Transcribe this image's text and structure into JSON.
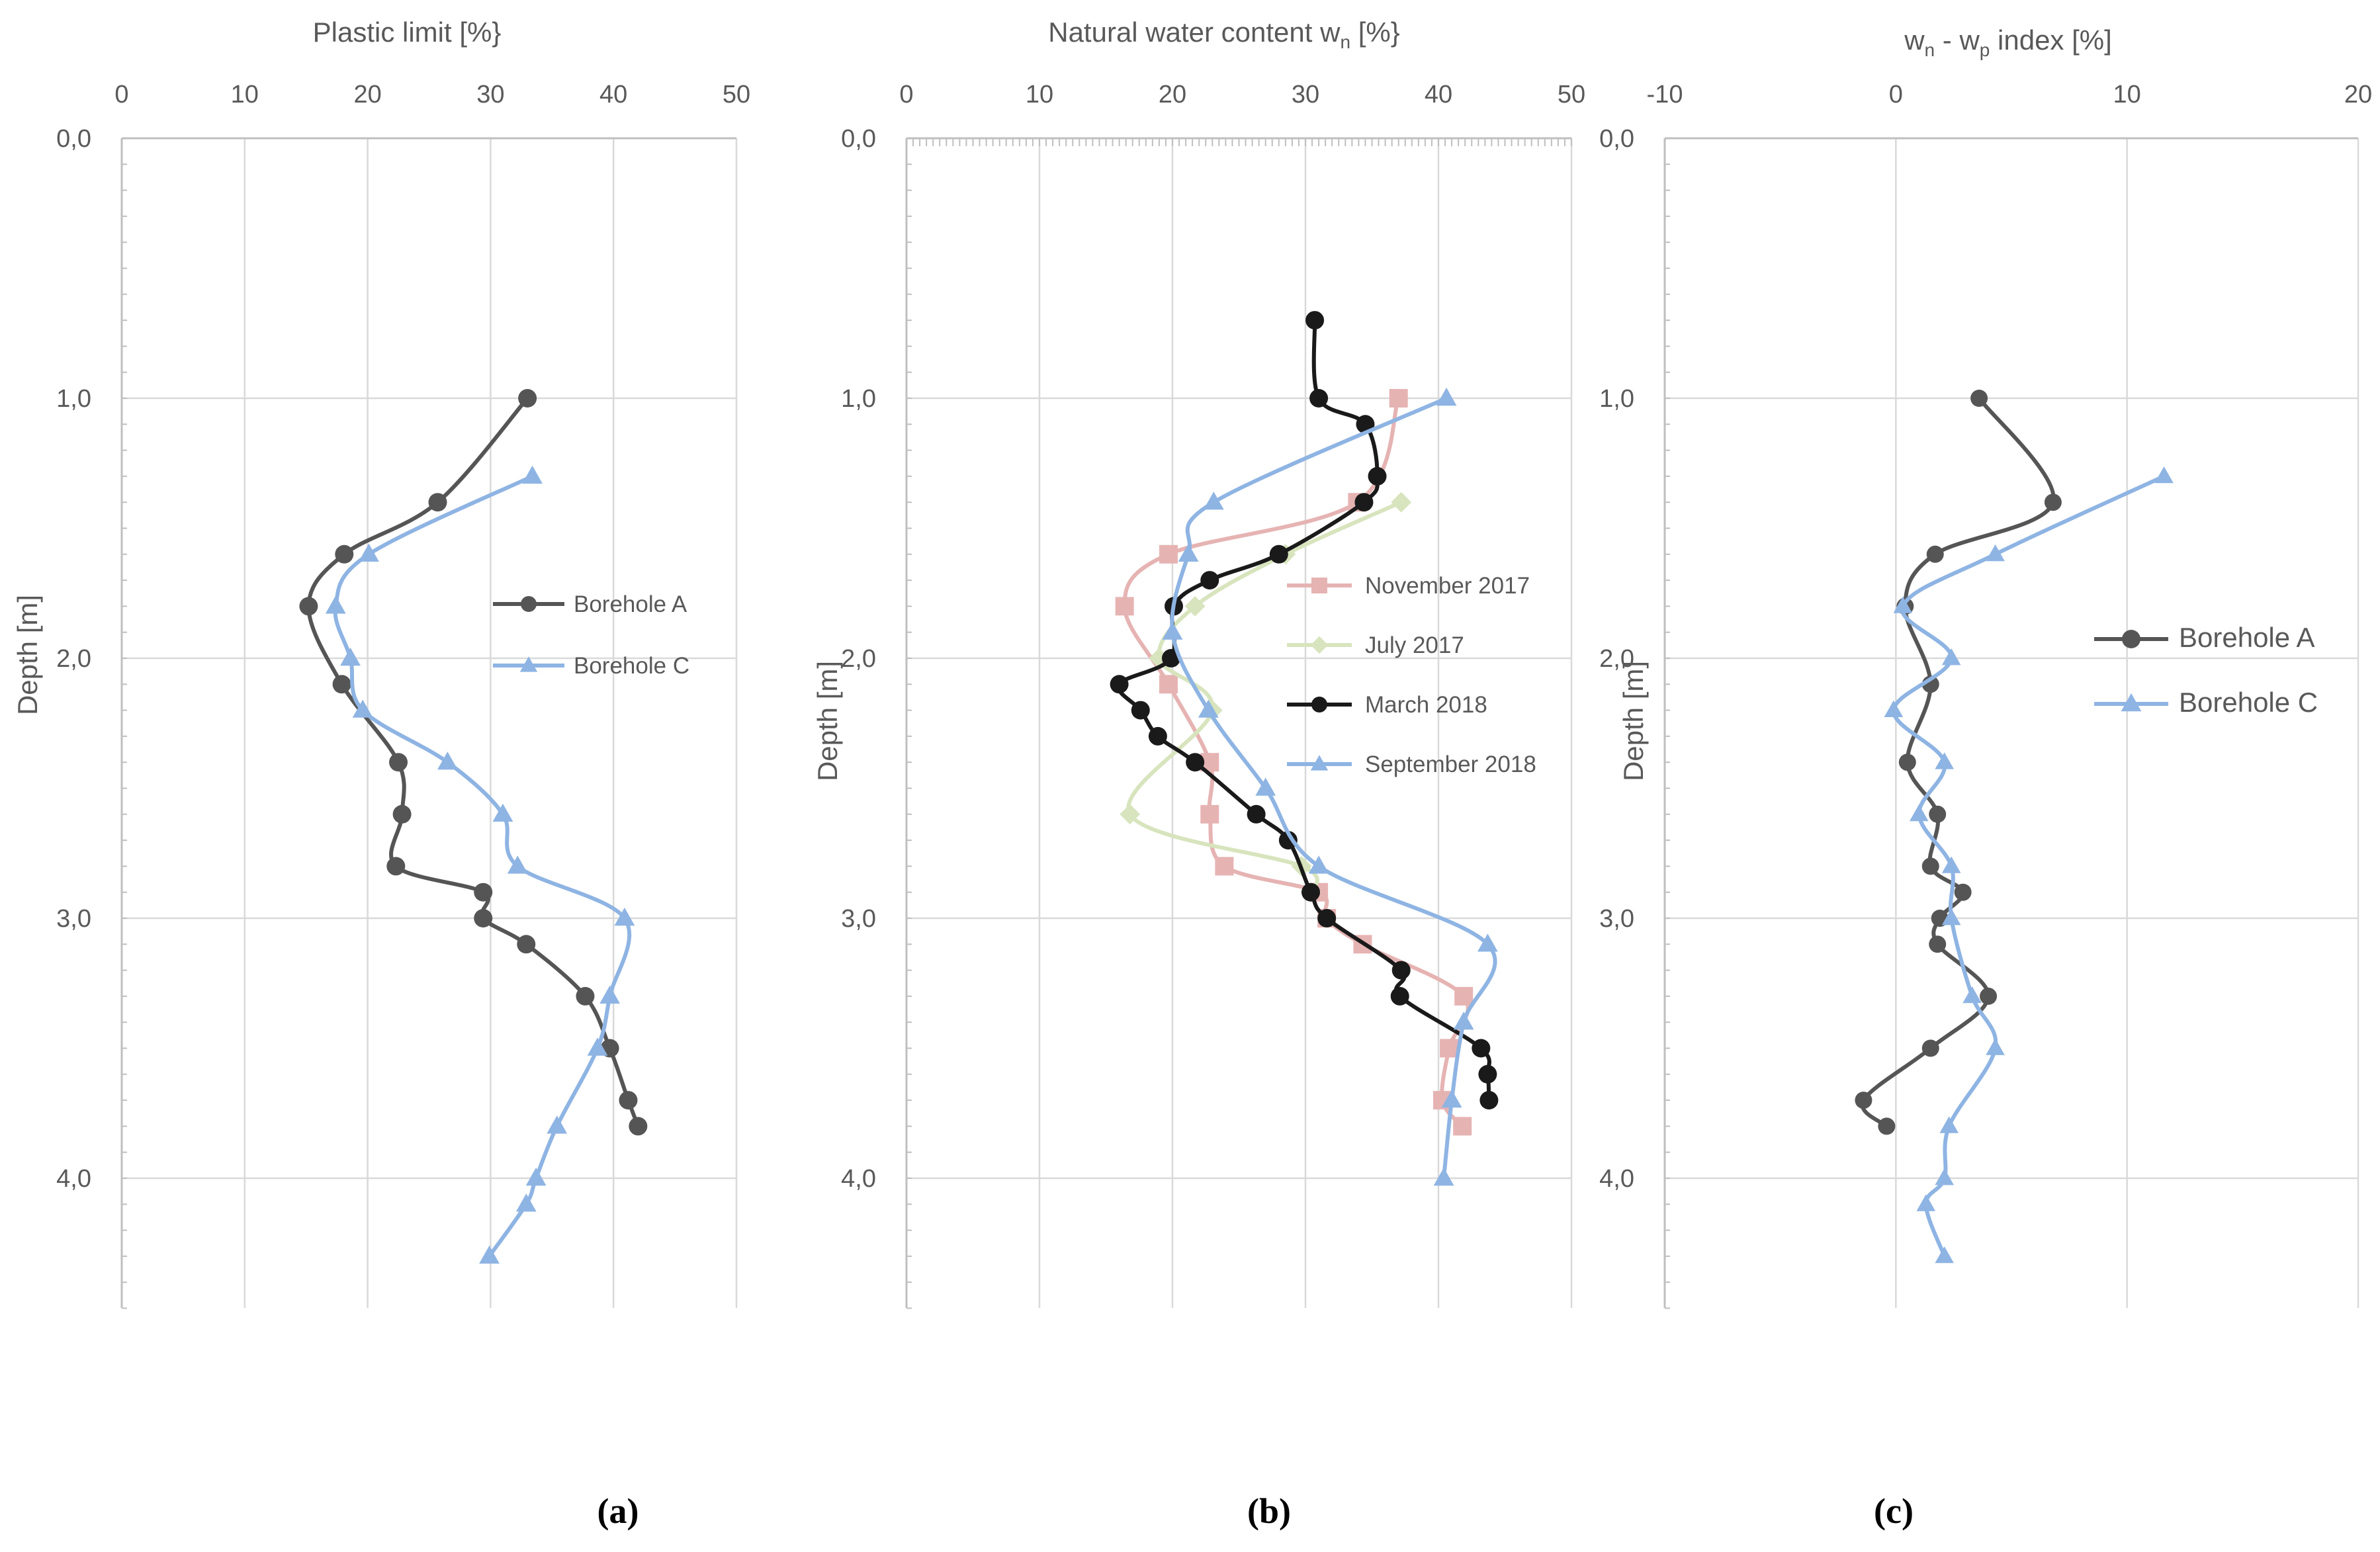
{
  "colors": {
    "borehole_a": "#555555",
    "borehole_c": "#8eb4e3",
    "nov_2017": "#e6b3b3",
    "jul_2017": "#d7e4bd",
    "mar_2018": "#1a1a1a",
    "sep_2018": "#8eb4e3",
    "grid": "#d9d9d9",
    "text": "#595959"
  },
  "chart_data": [
    {
      "id": "a",
      "type": "line",
      "caption": "(a)",
      "title": "Plastic limit [%}",
      "xlabel": "Plastic limit [%}",
      "ylabel": "Depth [m]",
      "xlim": [
        0,
        50
      ],
      "ylim": [
        0,
        4.5
      ],
      "x_ticks": [
        "0",
        "10",
        "20",
        "30",
        "40",
        "50"
      ],
      "x_tick_values": [
        0,
        10,
        20,
        30,
        40,
        50
      ],
      "y_ticks": [
        "0,0",
        "1,0",
        "2,0",
        "3,0",
        "4,0"
      ],
      "y_tick_values": [
        0,
        1,
        2,
        3,
        4
      ],
      "legend_position": "right-middle",
      "series": [
        {
          "name": "Borehole A",
          "color_key": "borehole_a",
          "marker": "circle",
          "points": [
            [
              33.0,
              1.0
            ],
            [
              25.7,
              1.4
            ],
            [
              18.1,
              1.6
            ],
            [
              15.2,
              1.8
            ],
            [
              17.9,
              2.1
            ],
            [
              22.5,
              2.4
            ],
            [
              22.8,
              2.6
            ],
            [
              22.3,
              2.8
            ],
            [
              29.4,
              2.9
            ],
            [
              29.4,
              3.0
            ],
            [
              32.9,
              3.1
            ],
            [
              37.7,
              3.3
            ],
            [
              39.7,
              3.5
            ],
            [
              41.2,
              3.7
            ],
            [
              42.0,
              3.8
            ]
          ]
        },
        {
          "name": "Borehole C",
          "color_key": "borehole_c",
          "marker": "triangle",
          "points": [
            [
              33.4,
              1.3
            ],
            [
              20.1,
              1.6
            ],
            [
              17.4,
              1.8
            ],
            [
              18.6,
              2.0
            ],
            [
              19.6,
              2.2
            ],
            [
              26.5,
              2.4
            ],
            [
              31.0,
              2.6
            ],
            [
              32.2,
              2.8
            ],
            [
              40.9,
              3.0
            ],
            [
              39.7,
              3.3
            ],
            [
              38.7,
              3.5
            ],
            [
              35.4,
              3.8
            ],
            [
              33.7,
              4.0
            ],
            [
              32.9,
              4.1
            ],
            [
              29.9,
              4.3
            ]
          ]
        }
      ]
    },
    {
      "id": "b",
      "type": "line",
      "caption": "(b)",
      "title": "Natural water content w",
      "title_subscript": "n",
      "title_unit": "[%}",
      "ylabel": "Depth [m]",
      "xlim": [
        0,
        50
      ],
      "ylim": [
        0,
        4.5
      ],
      "x_ticks": [
        "0",
        "10",
        "20",
        "30",
        "40",
        "50"
      ],
      "x_tick_values": [
        0,
        10,
        20,
        30,
        40,
        50
      ],
      "y_ticks": [
        "0,0",
        "1,0",
        "2,0",
        "3,0",
        "4,0"
      ],
      "y_tick_values": [
        0,
        1,
        2,
        3,
        4
      ],
      "legend_position": "middle",
      "series": [
        {
          "name": "November 2017",
          "color_key": "nov_2017",
          "marker": "square",
          "points": [
            [
              37.0,
              1.0
            ],
            [
              33.9,
              1.4
            ],
            [
              19.7,
              1.6
            ],
            [
              16.4,
              1.8
            ],
            [
              19.7,
              2.1
            ],
            [
              22.8,
              2.4
            ],
            [
              22.8,
              2.6
            ],
            [
              23.9,
              2.8
            ],
            [
              31.0,
              2.9
            ],
            [
              31.6,
              3.0
            ],
            [
              34.3,
              3.1
            ],
            [
              41.9,
              3.3
            ],
            [
              40.8,
              3.5
            ],
            [
              40.3,
              3.7
            ],
            [
              41.8,
              3.8
            ]
          ]
        },
        {
          "name": "July 2017",
          "color_key": "jul_2017",
          "marker": "diamond",
          "points": [
            [
              37.2,
              1.4
            ],
            [
              28.5,
              1.6
            ],
            [
              21.7,
              1.8
            ],
            [
              19.0,
              2.0
            ],
            [
              23.0,
              2.2
            ],
            [
              16.8,
              2.6
            ],
            [
              29.7,
              2.8
            ],
            [
              30.4,
              2.9
            ]
          ]
        },
        {
          "name": "March 2018",
          "color_key": "mar_2018",
          "marker": "circle",
          "points": [
            [
              30.7,
              0.7
            ],
            [
              31.0,
              1.0
            ],
            [
              34.5,
              1.1
            ],
            [
              35.4,
              1.3
            ],
            [
              34.4,
              1.4
            ],
            [
              28.0,
              1.6
            ],
            [
              22.8,
              1.7
            ],
            [
              20.1,
              1.8
            ],
            [
              19.9,
              2.0
            ],
            [
              16.0,
              2.1
            ],
            [
              17.6,
              2.2
            ],
            [
              18.9,
              2.3
            ],
            [
              21.7,
              2.4
            ],
            [
              26.3,
              2.6
            ],
            [
              28.7,
              2.7
            ],
            [
              30.4,
              2.9
            ],
            [
              31.6,
              3.0
            ],
            [
              37.2,
              3.2
            ],
            [
              37.1,
              3.3
            ],
            [
              43.2,
              3.5
            ],
            [
              43.7,
              3.6
            ],
            [
              43.8,
              3.7
            ]
          ]
        },
        {
          "name": "September 2018",
          "color_key": "sep_2018",
          "marker": "triangle",
          "points": [
            [
              40.6,
              1.0
            ],
            [
              23.1,
              1.4
            ],
            [
              21.2,
              1.6
            ],
            [
              20.0,
              1.9
            ],
            [
              22.7,
              2.2
            ],
            [
              27.0,
              2.5
            ],
            [
              31.0,
              2.8
            ],
            [
              43.7,
              3.1
            ],
            [
              41.9,
              3.4
            ],
            [
              41.0,
              3.7
            ],
            [
              40.4,
              4.0
            ]
          ]
        }
      ]
    },
    {
      "id": "c",
      "type": "line",
      "caption": "(c)",
      "title_parts": [
        "w",
        "n",
        " - w",
        "p",
        " index [%]"
      ],
      "ylabel": "Depth [m]",
      "xlim": [
        -10,
        20
      ],
      "ylim": [
        0,
        4.5
      ],
      "x_ticks": [
        "-10",
        "0",
        "10",
        "20"
      ],
      "x_tick_values": [
        -10,
        0,
        10,
        20
      ],
      "y_ticks": [
        "0,0",
        "1,0",
        "2,0",
        "3,0",
        "4,0"
      ],
      "y_tick_values": [
        0,
        1,
        2,
        3,
        4
      ],
      "legend_position": "right-upper",
      "series": [
        {
          "name": "Borehole A",
          "color_key": "borehole_a",
          "marker": "circle",
          "points": [
            [
              3.6,
              1.0
            ],
            [
              6.8,
              1.4
            ],
            [
              1.7,
              1.6
            ],
            [
              0.4,
              1.8
            ],
            [
              1.5,
              2.1
            ],
            [
              0.5,
              2.4
            ],
            [
              1.8,
              2.6
            ],
            [
              1.5,
              2.8
            ],
            [
              2.9,
              2.9
            ],
            [
              1.9,
              3.0
            ],
            [
              1.8,
              3.1
            ],
            [
              4.0,
              3.3
            ],
            [
              1.5,
              3.5
            ],
            [
              -1.4,
              3.7
            ],
            [
              -0.4,
              3.8
            ]
          ]
        },
        {
          "name": "Borehole C",
          "color_key": "borehole_c",
          "marker": "triangle",
          "points": [
            [
              11.6,
              1.3
            ],
            [
              4.3,
              1.6
            ],
            [
              0.3,
              1.8
            ],
            [
              2.4,
              2.0
            ],
            [
              -0.1,
              2.2
            ],
            [
              2.1,
              2.4
            ],
            [
              1.0,
              2.6
            ],
            [
              2.4,
              2.8
            ],
            [
              2.4,
              3.0
            ],
            [
              3.3,
              3.3
            ],
            [
              4.3,
              3.5
            ],
            [
              2.3,
              3.8
            ],
            [
              2.1,
              4.0
            ],
            [
              1.3,
              4.1
            ],
            [
              2.1,
              4.3
            ]
          ]
        }
      ]
    }
  ]
}
